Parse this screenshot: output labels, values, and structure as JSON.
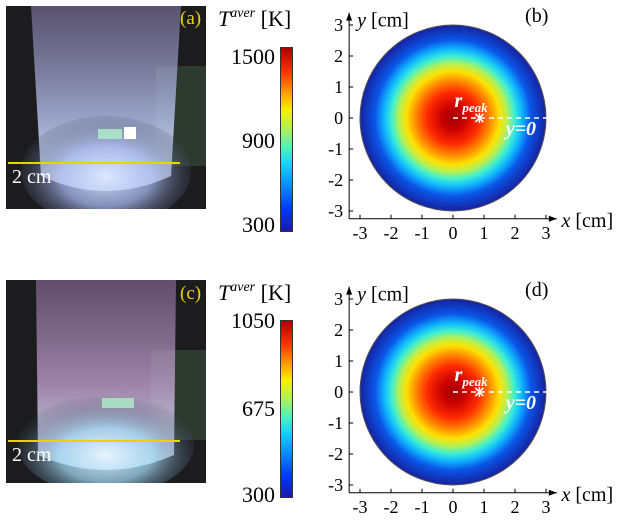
{
  "panels": {
    "a": {
      "tag": "(a)",
      "scale_label": "2 cm",
      "colorbar": {
        "symbol": "T",
        "superscript": "aver",
        "unit": "[K]",
        "ticks": [
          "1500",
          "900",
          "300"
        ],
        "min": 300,
        "max": 1500
      }
    },
    "b": {
      "tag": "(b)",
      "x_label": "x",
      "x_unit": "[cm]",
      "y_label": "y",
      "y_unit": "[cm]",
      "x_ticks": [
        "-3",
        "-2",
        "-1",
        "0",
        "1",
        "2",
        "3"
      ],
      "y_ticks": [
        "3",
        "2",
        "1",
        "0",
        "-1",
        "-2",
        "-3"
      ],
      "annotation_peak": "r",
      "annotation_peak_sub": "peak",
      "annotation_line": "y=0",
      "peak_radius_cm": 0.85,
      "disk_radius_cm": 3
    },
    "c": {
      "tag": "(c)",
      "scale_label": "2 cm",
      "colorbar": {
        "symbol": "T",
        "superscript": "aver",
        "unit": "[K]",
        "ticks": [
          "1050",
          "675",
          "300"
        ],
        "min": 300,
        "max": 1050
      }
    },
    "d": {
      "tag": "(d)",
      "x_label": "x",
      "x_unit": "[cm]",
      "y_label": "y",
      "y_unit": "[cm]",
      "x_ticks": [
        "-3",
        "-2",
        "-1",
        "0",
        "1",
        "2",
        "3"
      ],
      "y_ticks": [
        "3",
        "2",
        "1",
        "0",
        "-1",
        "-2",
        "-3"
      ],
      "annotation_peak": "r",
      "annotation_peak_sub": "peak",
      "annotation_line": "y=0",
      "peak_radius_cm": 0.85,
      "disk_radius_cm": 3
    }
  },
  "colors": {
    "tag_yellow": "#f0d000",
    "scale_line": "#e8d400",
    "disk_outer": "#1622a0",
    "disk_peak": "#b00000"
  }
}
